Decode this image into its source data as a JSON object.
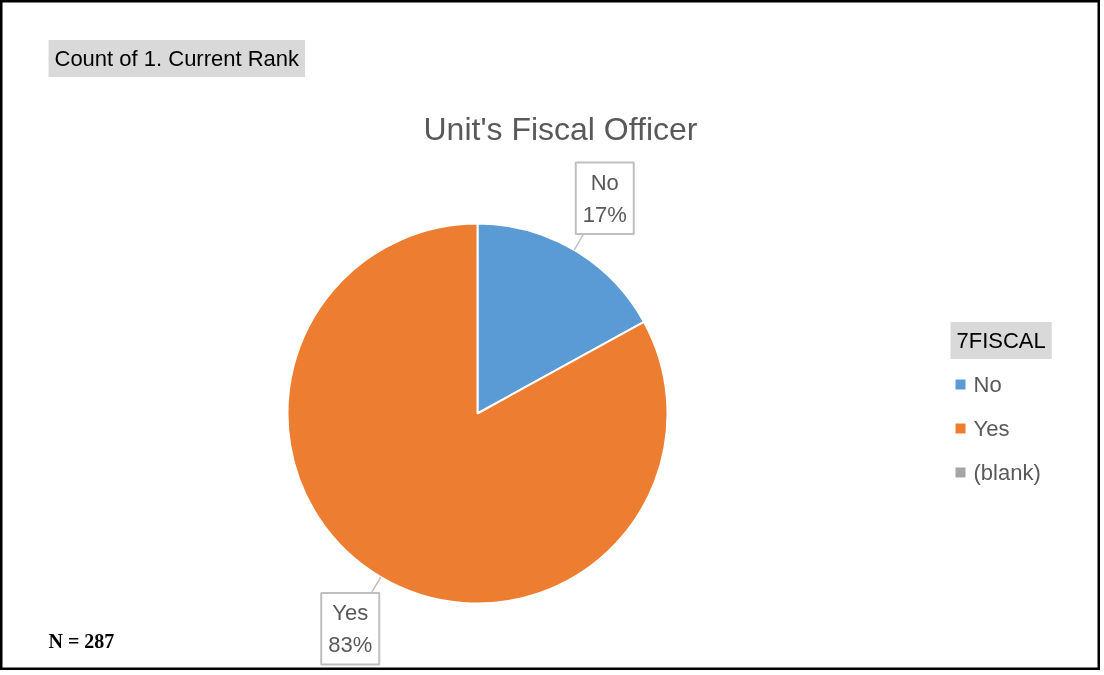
{
  "chart_data": {
    "type": "pie",
    "title": "Unit's Fiscal Officer",
    "categories": [
      "No",
      "Yes",
      "(blank)"
    ],
    "values": [
      17,
      83,
      0
    ],
    "colors": [
      "#5b9bd5",
      "#ed7d31",
      "#a5a5a5"
    ],
    "value_labels": [
      "17%",
      "83%",
      null
    ],
    "legend": "right",
    "legend_title": "7FISCAL",
    "annotations": [
      "Count of 1. Current Rank",
      "N = 287"
    ]
  }
}
